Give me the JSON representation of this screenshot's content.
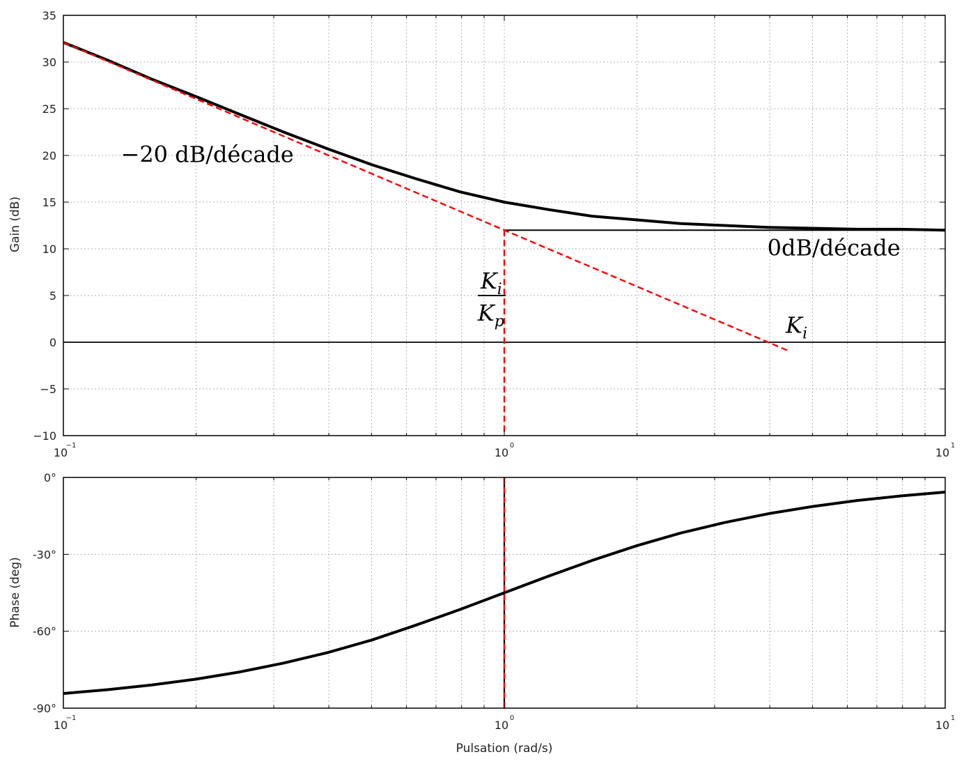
{
  "chart_data": [
    {
      "type": "line",
      "xlabel": "",
      "ylabel": "Gain (dB)",
      "xscale": "log",
      "xlim": [
        0.1,
        10
      ],
      "ylim": [
        -10,
        35
      ],
      "x_ticks": [
        0.1,
        1,
        10
      ],
      "x_tick_labels": [
        {
          "base": "10",
          "exp": "−1"
        },
        {
          "base": "10",
          "exp": "0"
        },
        {
          "base": "10",
          "exp": "1"
        }
      ],
      "y_ticks": [
        -10,
        -5,
        0,
        5,
        10,
        15,
        20,
        25,
        30,
        35
      ],
      "y_tick_labels": [
        "−10",
        "−5",
        "0",
        "5",
        "10",
        "15",
        "20",
        "25",
        "30",
        "35"
      ],
      "grid": true,
      "series": [
        {
          "name": "",
          "style": "solid-thick",
          "color": "#000000",
          "x": [
            0.1,
            0.126,
            0.158,
            0.2,
            0.251,
            0.316,
            0.398,
            0.501,
            0.631,
            0.794,
            1,
            1.26,
            1.58,
            2,
            2.51,
            3.16,
            3.98,
            5.01,
            6.31,
            7.94,
            10
          ],
          "y": [
            32.1,
            30.2,
            28.2,
            26.3,
            24.4,
            22.5,
            20.7,
            19.0,
            17.5,
            16.1,
            15.0,
            14.2,
            13.5,
            13.1,
            12.7,
            12.5,
            12.3,
            12.2,
            12.1,
            12.1,
            12.0
          ]
        },
        {
          "name": "",
          "style": "solid-thin",
          "color": "#000000",
          "x": [
            1,
            10
          ],
          "y": [
            12,
            12
          ]
        },
        {
          "name": "",
          "style": "dashed",
          "color": "#ff0000",
          "x": [
            0.1,
            1,
            4.4
          ],
          "y": [
            32.1,
            12,
            -0.9
          ]
        },
        {
          "name": "",
          "style": "dashed",
          "color": "#ff0000",
          "x": [
            1,
            1
          ],
          "y": [
            12,
            -10
          ]
        }
      ],
      "hlines": [
        0
      ],
      "annotations": [
        {
          "text": "−20 dB/décade",
          "x": 0.135,
          "y": 19.3
        },
        {
          "text": "0dB/décade",
          "x": 3.95,
          "y": 9.3
        },
        {
          "text": "K",
          "sub": "i",
          "x": 4.35,
          "y": 1.0
        },
        {
          "frac_num": "K",
          "frac_num_sub": "i",
          "frac_den": "K",
          "frac_den_sub": "p",
          "x": 0.95,
          "y": 5
        }
      ]
    },
    {
      "type": "line",
      "xlabel": "Pulsation (rad/s)",
      "ylabel": "Phase (deg)",
      "xscale": "log",
      "xlim": [
        0.1,
        10
      ],
      "ylim": [
        -90,
        0
      ],
      "x_ticks": [
        0.1,
        1,
        10
      ],
      "x_tick_labels": [
        {
          "base": "10",
          "exp": "−1"
        },
        {
          "base": "10",
          "exp": "0"
        },
        {
          "base": "10",
          "exp": "1"
        }
      ],
      "y_ticks": [
        -90,
        -60,
        -30,
        0
      ],
      "y_tick_labels": [
        "-90°",
        "-60°",
        "-30°",
        "0°"
      ],
      "grid": true,
      "series": [
        {
          "name": "",
          "style": "solid-thick",
          "color": "#000000",
          "x": [
            0.1,
            0.126,
            0.158,
            0.2,
            0.251,
            0.316,
            0.398,
            0.501,
            0.631,
            0.794,
            1,
            1.26,
            1.58,
            2,
            2.51,
            3.16,
            3.98,
            5.01,
            6.31,
            7.94,
            10
          ],
          "y": [
            -84.3,
            -82.8,
            -81.0,
            -78.7,
            -75.9,
            -72.4,
            -68.3,
            -63.4,
            -57.6,
            -51.5,
            -45.0,
            -38.5,
            -32.4,
            -26.6,
            -21.7,
            -17.6,
            -14.1,
            -11.3,
            -9.0,
            -7.2,
            -5.7
          ]
        },
        {
          "name": "",
          "style": "dashed",
          "color": "#ff0000",
          "x": [
            1,
            1
          ],
          "y": [
            0,
            -90
          ]
        }
      ],
      "vlines": [
        1
      ]
    }
  ]
}
